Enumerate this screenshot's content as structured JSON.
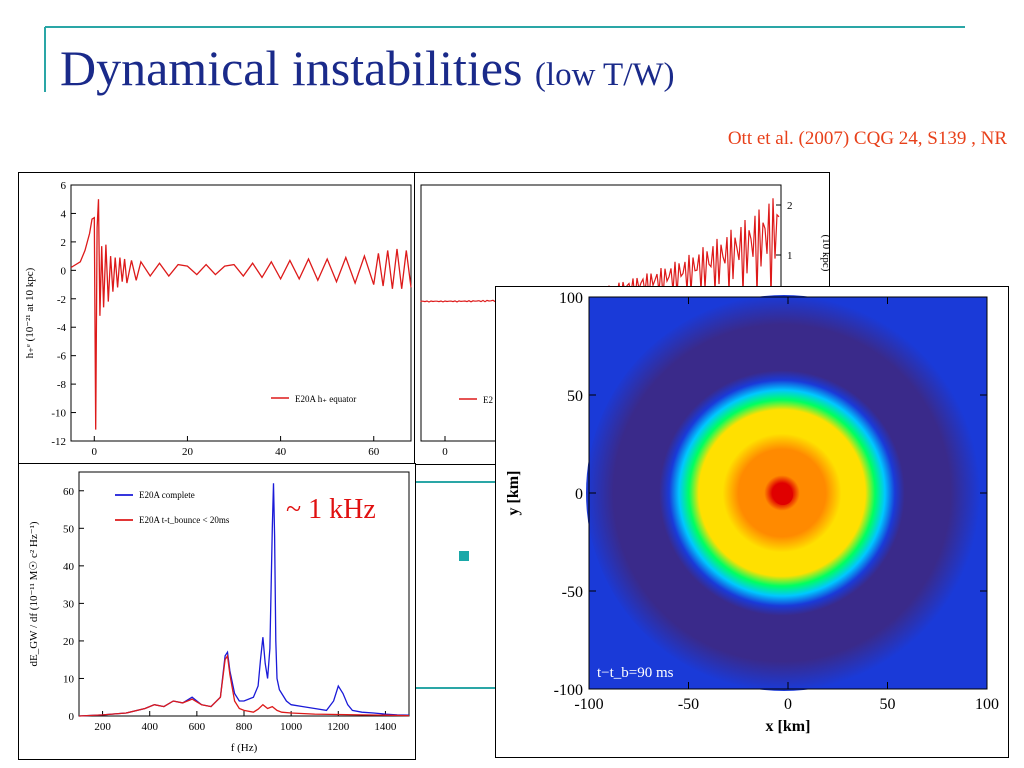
{
  "slide": {
    "title_main": "Dynamical instabilities",
    "title_small": "(low T/W)",
    "citation": "Ott et al. (2007) CQG 24, S139 , NR",
    "bullet_color": "#1aa8a8",
    "accent_line_color": "#2aa6a6",
    "title_color": "#1a2a8a",
    "citation_color": "#e8401a"
  },
  "annotation": "~ 1 kHz",
  "chart_data": [
    {
      "type": "line",
      "name": "strain-equator",
      "ylabel": "h₊ᵉ  (10⁻²¹ at 10 kpc)",
      "xlabel": "",
      "xlim": [
        -5,
        68
      ],
      "ylim": [
        -12,
        6
      ],
      "xticks": [
        0,
        20,
        40,
        60
      ],
      "yticks": [
        6,
        4,
        2,
        0,
        -2,
        -4,
        -6,
        -8,
        -10,
        -12
      ],
      "legend": "top-right",
      "series": [
        {
          "name": "E20A h₊ equator",
          "color": "#dd1a1a",
          "x": [
            -5,
            -3,
            -2,
            -1,
            -0.5,
            0,
            0.3,
            0.6,
            0.9,
            1.2,
            1.6,
            2,
            2.5,
            3,
            3.5,
            4,
            4.5,
            5,
            5.5,
            6,
            6.5,
            7,
            8,
            9,
            10,
            12,
            14,
            16,
            18,
            20,
            22,
            24,
            26,
            28,
            30,
            32,
            34,
            36,
            38,
            40,
            42,
            44,
            46,
            48,
            50,
            52,
            54,
            56,
            58,
            60,
            61,
            62,
            63,
            64,
            65,
            66,
            67,
            68
          ],
          "y": [
            0.2,
            0.6,
            1.4,
            2.6,
            3.6,
            3.7,
            -11.2,
            3.0,
            5.0,
            -3.2,
            1.7,
            -2.6,
            1.8,
            -2.2,
            1.0,
            -1.5,
            0.9,
            -1.2,
            0.9,
            -0.8,
            0.8,
            -0.9,
            0.7,
            -0.7,
            0.6,
            -0.4,
            0.5,
            -0.4,
            0.4,
            0.3,
            -0.3,
            0.4,
            -0.3,
            0.3,
            0.4,
            -0.4,
            0.5,
            -0.5,
            0.6,
            -0.6,
            0.7,
            -0.6,
            0.8,
            -0.7,
            0.8,
            -0.8,
            0.9,
            -0.9,
            1.0,
            -1.0,
            1.2,
            -1.1,
            1.4,
            -1.3,
            1.5,
            -1.3,
            1.4,
            -1.2
          ]
        }
      ]
    },
    {
      "type": "line",
      "name": "strain-polar",
      "ylabel": "(10 kpc)",
      "xticks": [
        0
      ],
      "yticks": [
        2,
        1
      ],
      "legend": "bottom-left",
      "series": [
        {
          "name": "E2",
          "color": "#dd1a1a"
        }
      ]
    },
    {
      "type": "line",
      "name": "gw-energy-spectrum",
      "xlabel": "f (Hz)",
      "ylabel": "dE_GW / df (10⁻¹¹ M☉ c² Hz⁻¹)",
      "xlim": [
        100,
        1500
      ],
      "ylim": [
        0,
        65
      ],
      "xticks": [
        200,
        400,
        600,
        800,
        1000,
        1200,
        1400
      ],
      "yticks": [
        0,
        10,
        20,
        30,
        40,
        50,
        60
      ],
      "legend": "top-left",
      "series": [
        {
          "name": "E20A complete",
          "color": "#1a1ad8",
          "x": [
            100,
            200,
            300,
            380,
            420,
            460,
            500,
            540,
            580,
            620,
            660,
            700,
            720,
            730,
            740,
            760,
            780,
            800,
            840,
            860,
            870,
            880,
            890,
            900,
            910,
            920,
            925,
            930,
            935,
            940,
            950,
            980,
            1000,
            1050,
            1100,
            1150,
            1180,
            1200,
            1220,
            1240,
            1260,
            1300,
            1350,
            1400,
            1450,
            1500
          ],
          "y": [
            0,
            0.3,
            0.8,
            2,
            3,
            2.5,
            4,
            3.5,
            5,
            3,
            2.5,
            5,
            16,
            17,
            12,
            6,
            4,
            4,
            5,
            8,
            15,
            21,
            14,
            10,
            18,
            50,
            62,
            48,
            20,
            10,
            7,
            4,
            3,
            2.5,
            2,
            1.5,
            4,
            8,
            6,
            3,
            1.5,
            1,
            0.8,
            0.5,
            0.3,
            0.2
          ]
        },
        {
          "name": "E20A t-t_bounce < 20ms",
          "color": "#dd1a1a",
          "x": [
            100,
            200,
            300,
            380,
            420,
            460,
            500,
            540,
            580,
            620,
            660,
            700,
            720,
            730,
            740,
            760,
            780,
            800,
            840,
            860,
            880,
            900,
            920,
            940,
            960,
            1000,
            1100,
            1200,
            1300,
            1400,
            1500
          ],
          "y": [
            0,
            0.3,
            0.8,
            2,
            3,
            2.5,
            4,
            3.5,
            4.5,
            3,
            2.5,
            5,
            15,
            16,
            11,
            4,
            2,
            1.5,
            1,
            1.8,
            3,
            2,
            2.5,
            1.5,
            1,
            0.8,
            0.5,
            0.4,
            0.3,
            0.2,
            0.1
          ]
        }
      ]
    },
    {
      "type": "heatmap",
      "name": "density-slice",
      "xlabel": "x [km]",
      "ylabel": "y [km]",
      "xlim": [
        -100,
        100
      ],
      "ylim": [
        -100,
        100
      ],
      "xticks": [
        -100,
        -50,
        0,
        50,
        100
      ],
      "yticks": [
        100,
        50,
        0,
        -50,
        -100
      ],
      "annotation": "t−t_b=90 ms",
      "colormap": [
        "#1a3ad8",
        "#3a2a8a",
        "#00c8ff",
        "#00ff60",
        "#ffe000",
        "#ff8a00",
        "#e00000"
      ]
    }
  ]
}
